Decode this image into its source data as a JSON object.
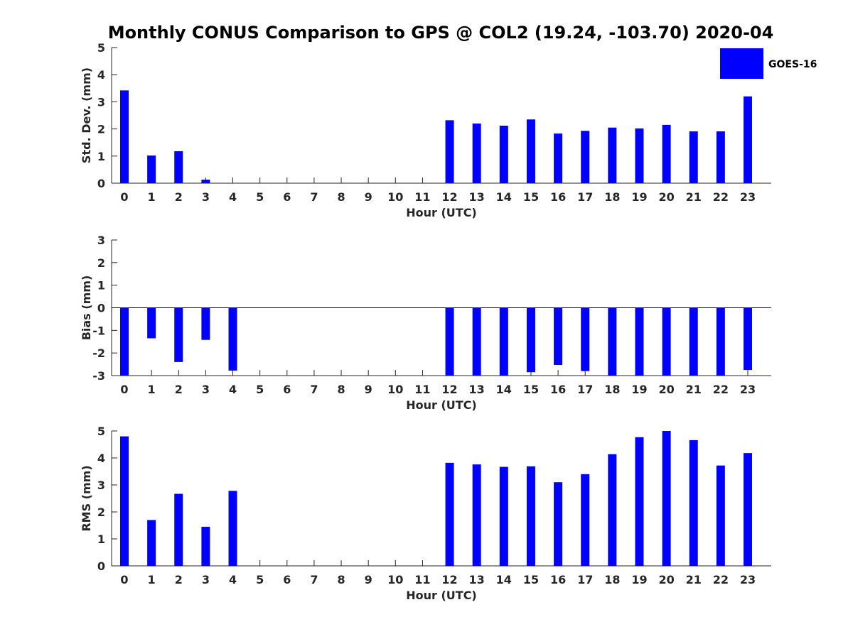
{
  "chart_data": {
    "type": "bar",
    "title": "Monthly CONUS Comparison to GPS @ COL2 (19.24, -103.70) 2020-04",
    "legend": {
      "entries": [
        "GOES-16"
      ],
      "placement": "top-right"
    },
    "series_color": "#0000ff",
    "subplots": [
      {
        "type": "bar",
        "xlabel": "Hour (UTC)",
        "ylabel": "Std. Dev. (mm)",
        "categories": [
          "0",
          "1",
          "2",
          "3",
          "4",
          "5",
          "6",
          "7",
          "8",
          "9",
          "10",
          "11",
          "12",
          "13",
          "14",
          "15",
          "16",
          "17",
          "18",
          "19",
          "20",
          "21",
          "22",
          "23"
        ],
        "ylim": [
          0,
          5
        ],
        "yticks": [
          0,
          1,
          2,
          3,
          4,
          5
        ],
        "series": [
          {
            "name": "GOES-16",
            "values": [
              3.42,
              1.02,
              1.18,
              0.13,
              null,
              null,
              null,
              null,
              null,
              null,
              null,
              null,
              2.32,
              2.2,
              2.12,
              2.35,
              1.83,
              1.93,
              2.05,
              2.02,
              2.15,
              1.91,
              1.91,
              3.2
            ]
          }
        ]
      },
      {
        "type": "bar",
        "xlabel": "Hour (UTC)",
        "ylabel": "Bias (mm)",
        "categories": [
          "0",
          "1",
          "2",
          "3",
          "4",
          "5",
          "6",
          "7",
          "8",
          "9",
          "10",
          "11",
          "12",
          "13",
          "14",
          "15",
          "16",
          "17",
          "18",
          "19",
          "20",
          "21",
          "22",
          "23"
        ],
        "ylim": [
          -3,
          3
        ],
        "yticks": [
          -3,
          -2,
          -1,
          0,
          1,
          2,
          3
        ],
        "series": [
          {
            "name": "GOES-16",
            "values": [
              -3.0,
              -1.35,
              -2.4,
              -1.42,
              -2.78,
              null,
              null,
              null,
              null,
              null,
              null,
              null,
              -3.0,
              -3.0,
              -3.0,
              -2.85,
              -2.53,
              -2.8,
              -3.0,
              -3.0,
              -3.0,
              -3.0,
              -3.0,
              -2.75
            ]
          }
        ]
      },
      {
        "type": "bar",
        "xlabel": "Hour (UTC)",
        "ylabel": "RMS (mm)",
        "categories": [
          "0",
          "1",
          "2",
          "3",
          "4",
          "5",
          "6",
          "7",
          "8",
          "9",
          "10",
          "11",
          "12",
          "13",
          "14",
          "15",
          "16",
          "17",
          "18",
          "19",
          "20",
          "21",
          "22",
          "23"
        ],
        "ylim": [
          0,
          5
        ],
        "yticks": [
          0,
          1,
          2,
          3,
          4,
          5
        ],
        "series": [
          {
            "name": "GOES-16",
            "values": [
              4.8,
              1.7,
              2.67,
              1.45,
              2.78,
              null,
              null,
              null,
              null,
              null,
              null,
              null,
              3.82,
              3.76,
              3.67,
              3.69,
              3.1,
              3.4,
              4.14,
              4.77,
              5.0,
              4.66,
              3.72,
              4.18
            ]
          }
        ]
      }
    ]
  }
}
